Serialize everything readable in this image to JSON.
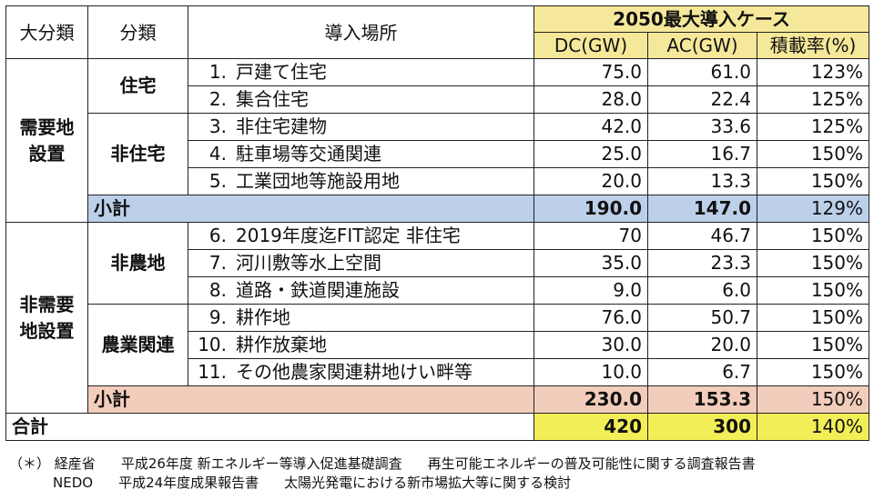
{
  "header": {
    "col_major": "大分類",
    "col_class": "分類",
    "col_place": "導入場所",
    "case_title": "2050最大導入ケース",
    "col_dc": "DC(GW)",
    "col_ac": "AC(GW)",
    "col_ratio": "積載率(%)"
  },
  "group1": {
    "label": "需要地\n設置",
    "line1": "需要地",
    "line2": "設置",
    "sub_a": "住宅",
    "sub_b": "非住宅",
    "rows": [
      {
        "no": "1.",
        "place": "戸建て住宅",
        "dc": "75.0",
        "ac": "61.0",
        "ratio": "123%"
      },
      {
        "no": "2.",
        "place": "集合住宅",
        "dc": "28.0",
        "ac": "22.4",
        "ratio": "125%"
      },
      {
        "no": "3.",
        "place": "非住宅建物",
        "dc": "42.0",
        "ac": "33.6",
        "ratio": "125%"
      },
      {
        "no": "4.",
        "place": "駐車場等交通関連",
        "dc": "25.0",
        "ac": "16.7",
        "ratio": "150%"
      },
      {
        "no": "5.",
        "place": "工業団地等施設用地",
        "dc": "20.0",
        "ac": "13.3",
        "ratio": "150%"
      }
    ],
    "subtotal": {
      "label": "小計",
      "dc": "190.0",
      "ac": "147.0",
      "ratio": "129%"
    }
  },
  "group2": {
    "line1": "非需要",
    "line2": "地設置",
    "sub_a": "非農地",
    "sub_b": "農業関連",
    "rows": [
      {
        "no": "6.",
        "place": "2019年度迄FIT認定 非住宅",
        "dc": "70",
        "ac": "46.7",
        "ratio": "150%"
      },
      {
        "no": "7.",
        "place": "河川敷等水上空間",
        "dc": "35.0",
        "ac": "23.3",
        "ratio": "150%"
      },
      {
        "no": "8.",
        "place": "道路・鉄道関連施設",
        "dc": "9.0",
        "ac": "6.0",
        "ratio": "150%"
      },
      {
        "no": "9.",
        "place": "耕作地",
        "dc": "76.0",
        "ac": "50.7",
        "ratio": "150%"
      },
      {
        "no": "10.",
        "place": "耕作放棄地",
        "dc": "30.0",
        "ac": "20.0",
        "ratio": "150%"
      },
      {
        "no": "11.",
        "place": "その他農家関連耕地けい畔等",
        "dc": "10.0",
        "ac": "6.7",
        "ratio": "150%"
      }
    ],
    "subtotal": {
      "label": "小計",
      "dc": "230.0",
      "ac": "153.3",
      "ratio": "150%"
    }
  },
  "total": {
    "label": "合計",
    "dc": "420",
    "ac": "300",
    "ratio": "140%"
  },
  "notes": {
    "mark": "（＊）",
    "src1_org": "経産省",
    "src1_year": "平成26年度 新エネルギー等導入促進基礎調査",
    "src1_title": "再生可能エネルギーの普及可能性に関する調査報告書",
    "src2_org": "NEDO",
    "src2_year": "平成24年度成果報告書",
    "src2_title": "太陽光発電における新市場拡大等に関する検討"
  }
}
